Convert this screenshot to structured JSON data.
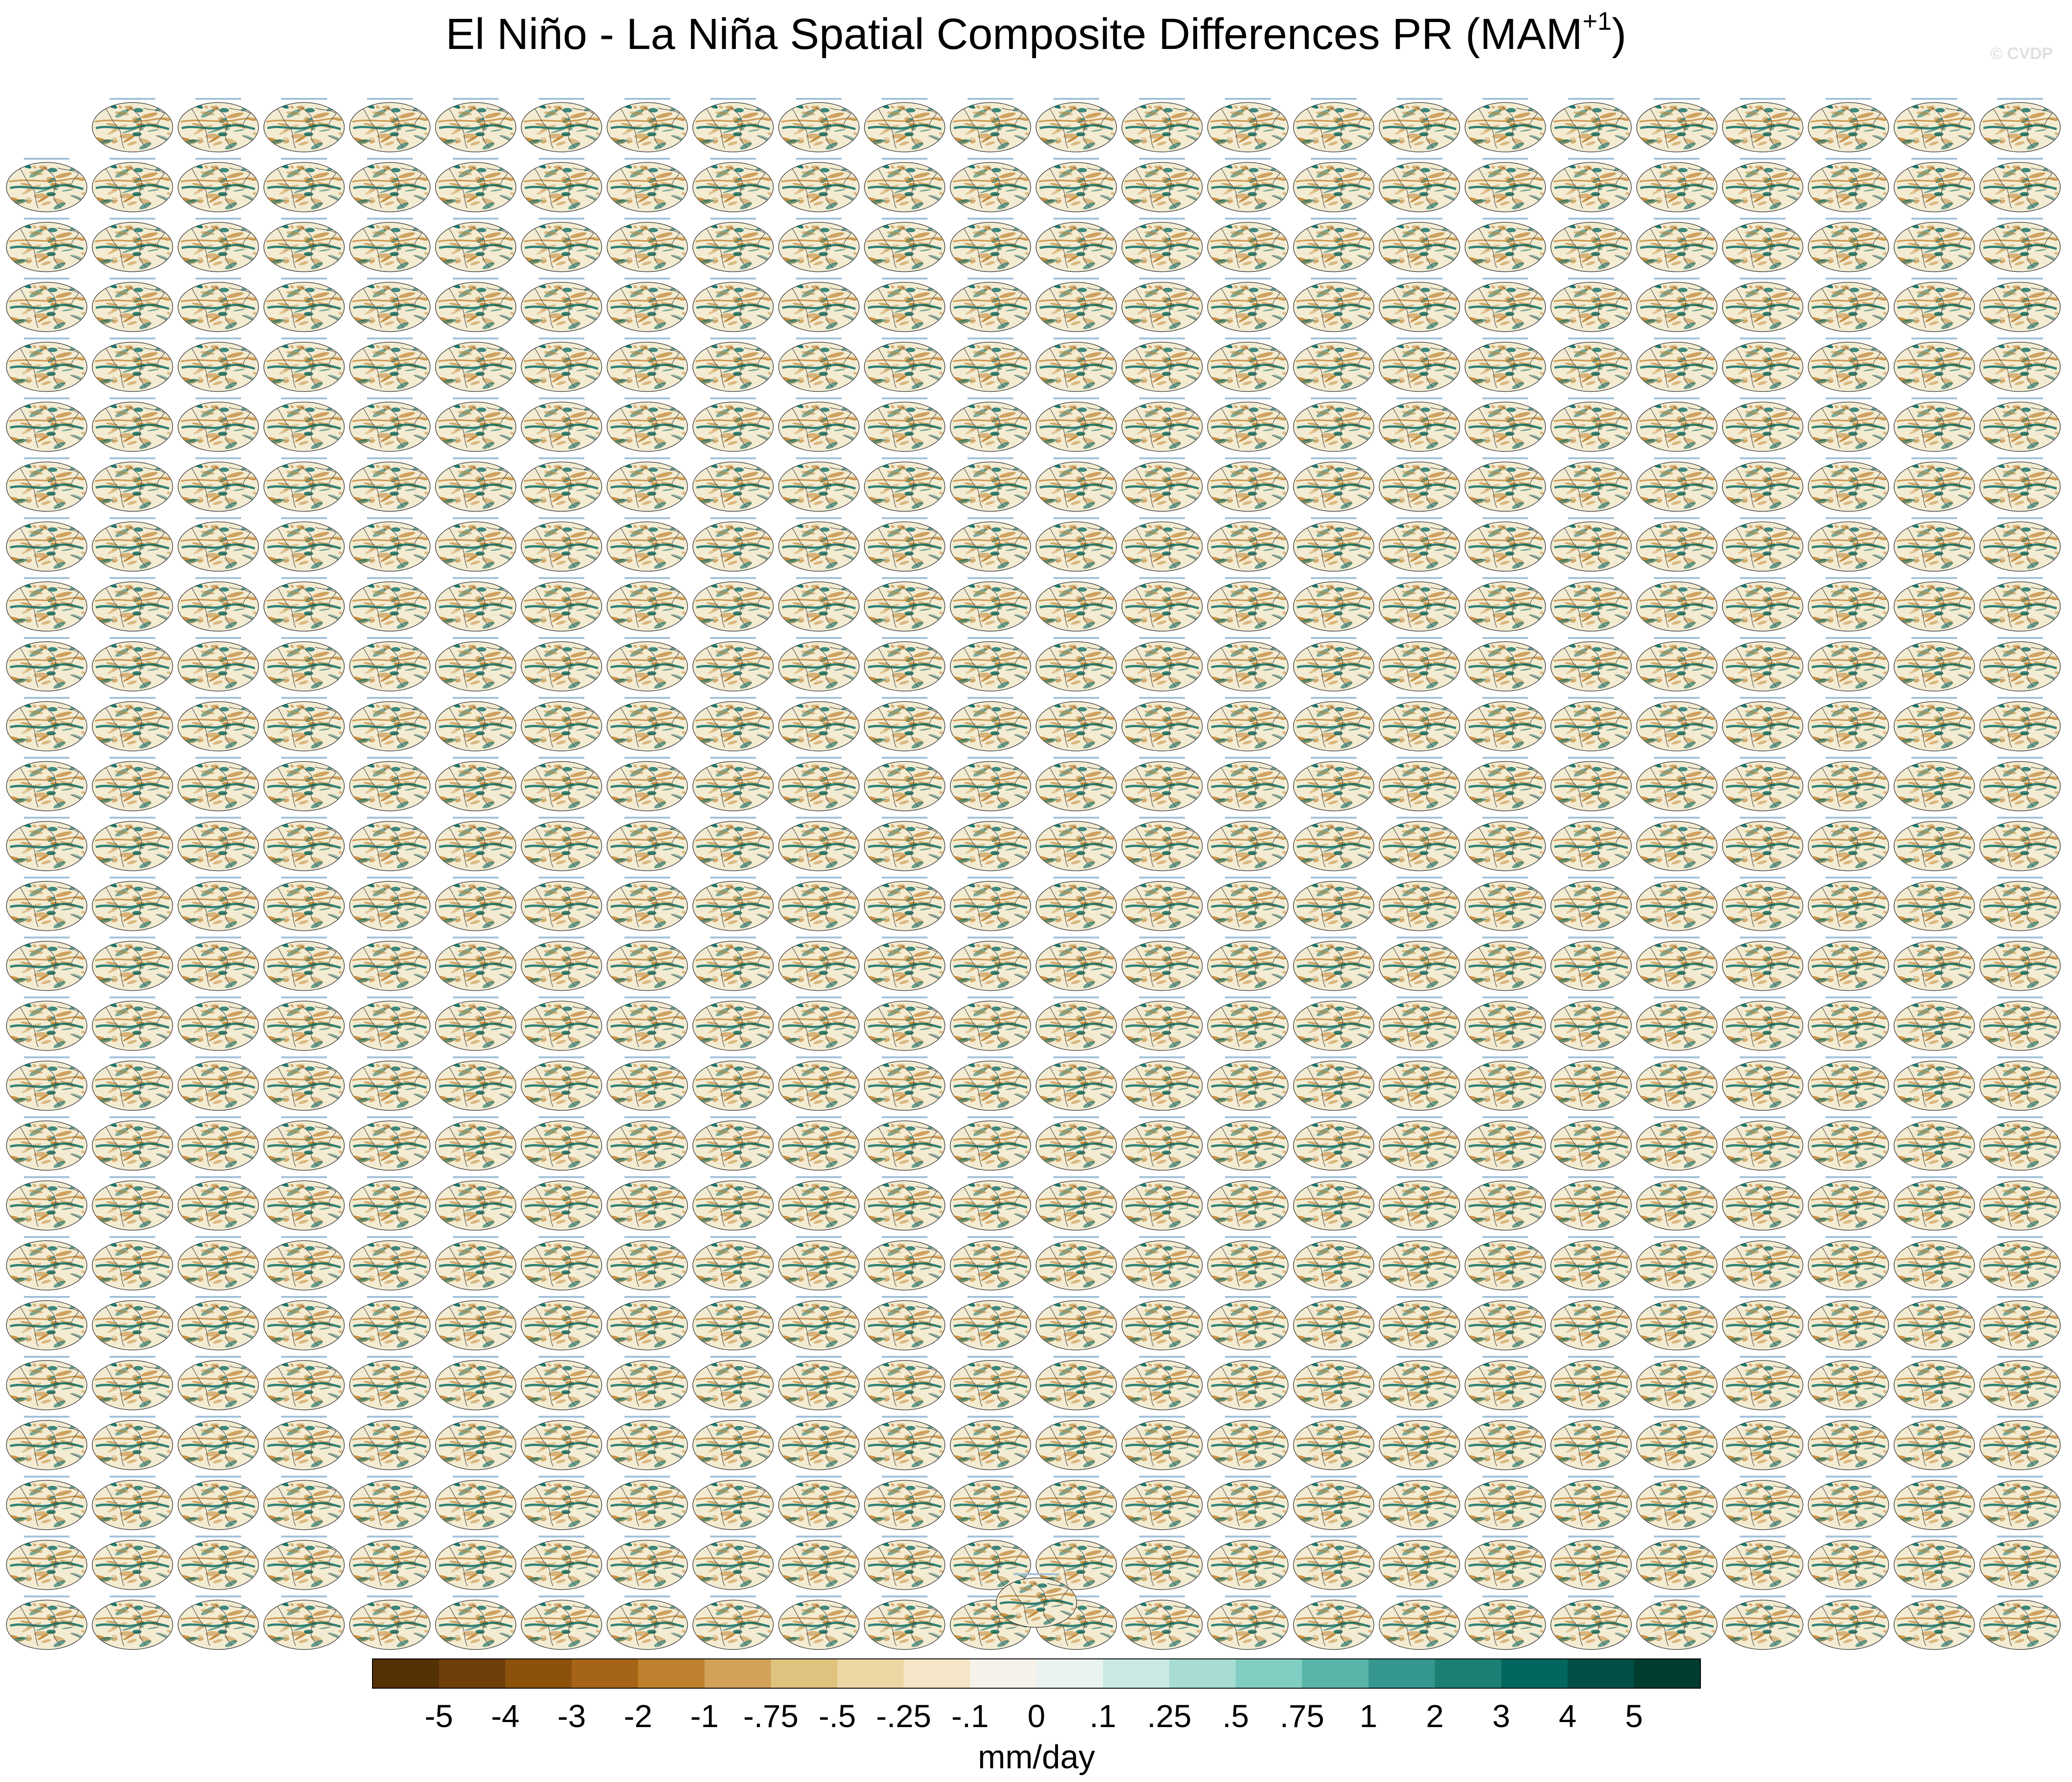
{
  "figure": {
    "title_main": "El Niño - La Niña Spatial Composite Differences PR (MAM",
    "title_sup": "+1",
    "title_close": ")",
    "watermark": "© CVDP"
  },
  "panels": {
    "columns": 24,
    "first_row_count": 23,
    "full_rows": 25,
    "last_row_count": 1,
    "total": 624,
    "ocean_color": "#f4ecd2",
    "land_outline": "#555555",
    "positive_color": "#01665e",
    "negative_color": "#bf812d"
  },
  "chart_data": {
    "type": "heatmap",
    "title": "El Niño - La Niña Spatial Composite Differences PR (MAM+1)",
    "colorbar": {
      "label": "mm/day",
      "tick_labels": [
        "-5",
        "-4",
        "-3",
        "-2",
        "-1",
        "-.75",
        "-.5",
        "-.25",
        "-.1",
        "0",
        ".1",
        ".25",
        ".5",
        ".75",
        "1",
        "2",
        "3",
        "4",
        "5"
      ],
      "levels": [
        -5,
        -4,
        -3,
        -2,
        -1,
        -0.75,
        -0.5,
        -0.25,
        -0.1,
        0,
        0.1,
        0.25,
        0.5,
        0.75,
        1,
        2,
        3,
        4,
        5
      ],
      "colors": [
        "#543005",
        "#6e3f0a",
        "#8c510a",
        "#a66418",
        "#bf812d",
        "#d2a15a",
        "#dfc27d",
        "#ecd6a4",
        "#f4e6c6",
        "#f5f2ea",
        "#e9f3f0",
        "#cbe9e3",
        "#a7ddd3",
        "#80cdc1",
        "#5ab4a8",
        "#35978f",
        "#1c7f74",
        "#01665e",
        "#004f44",
        "#003c30"
      ]
    }
  }
}
